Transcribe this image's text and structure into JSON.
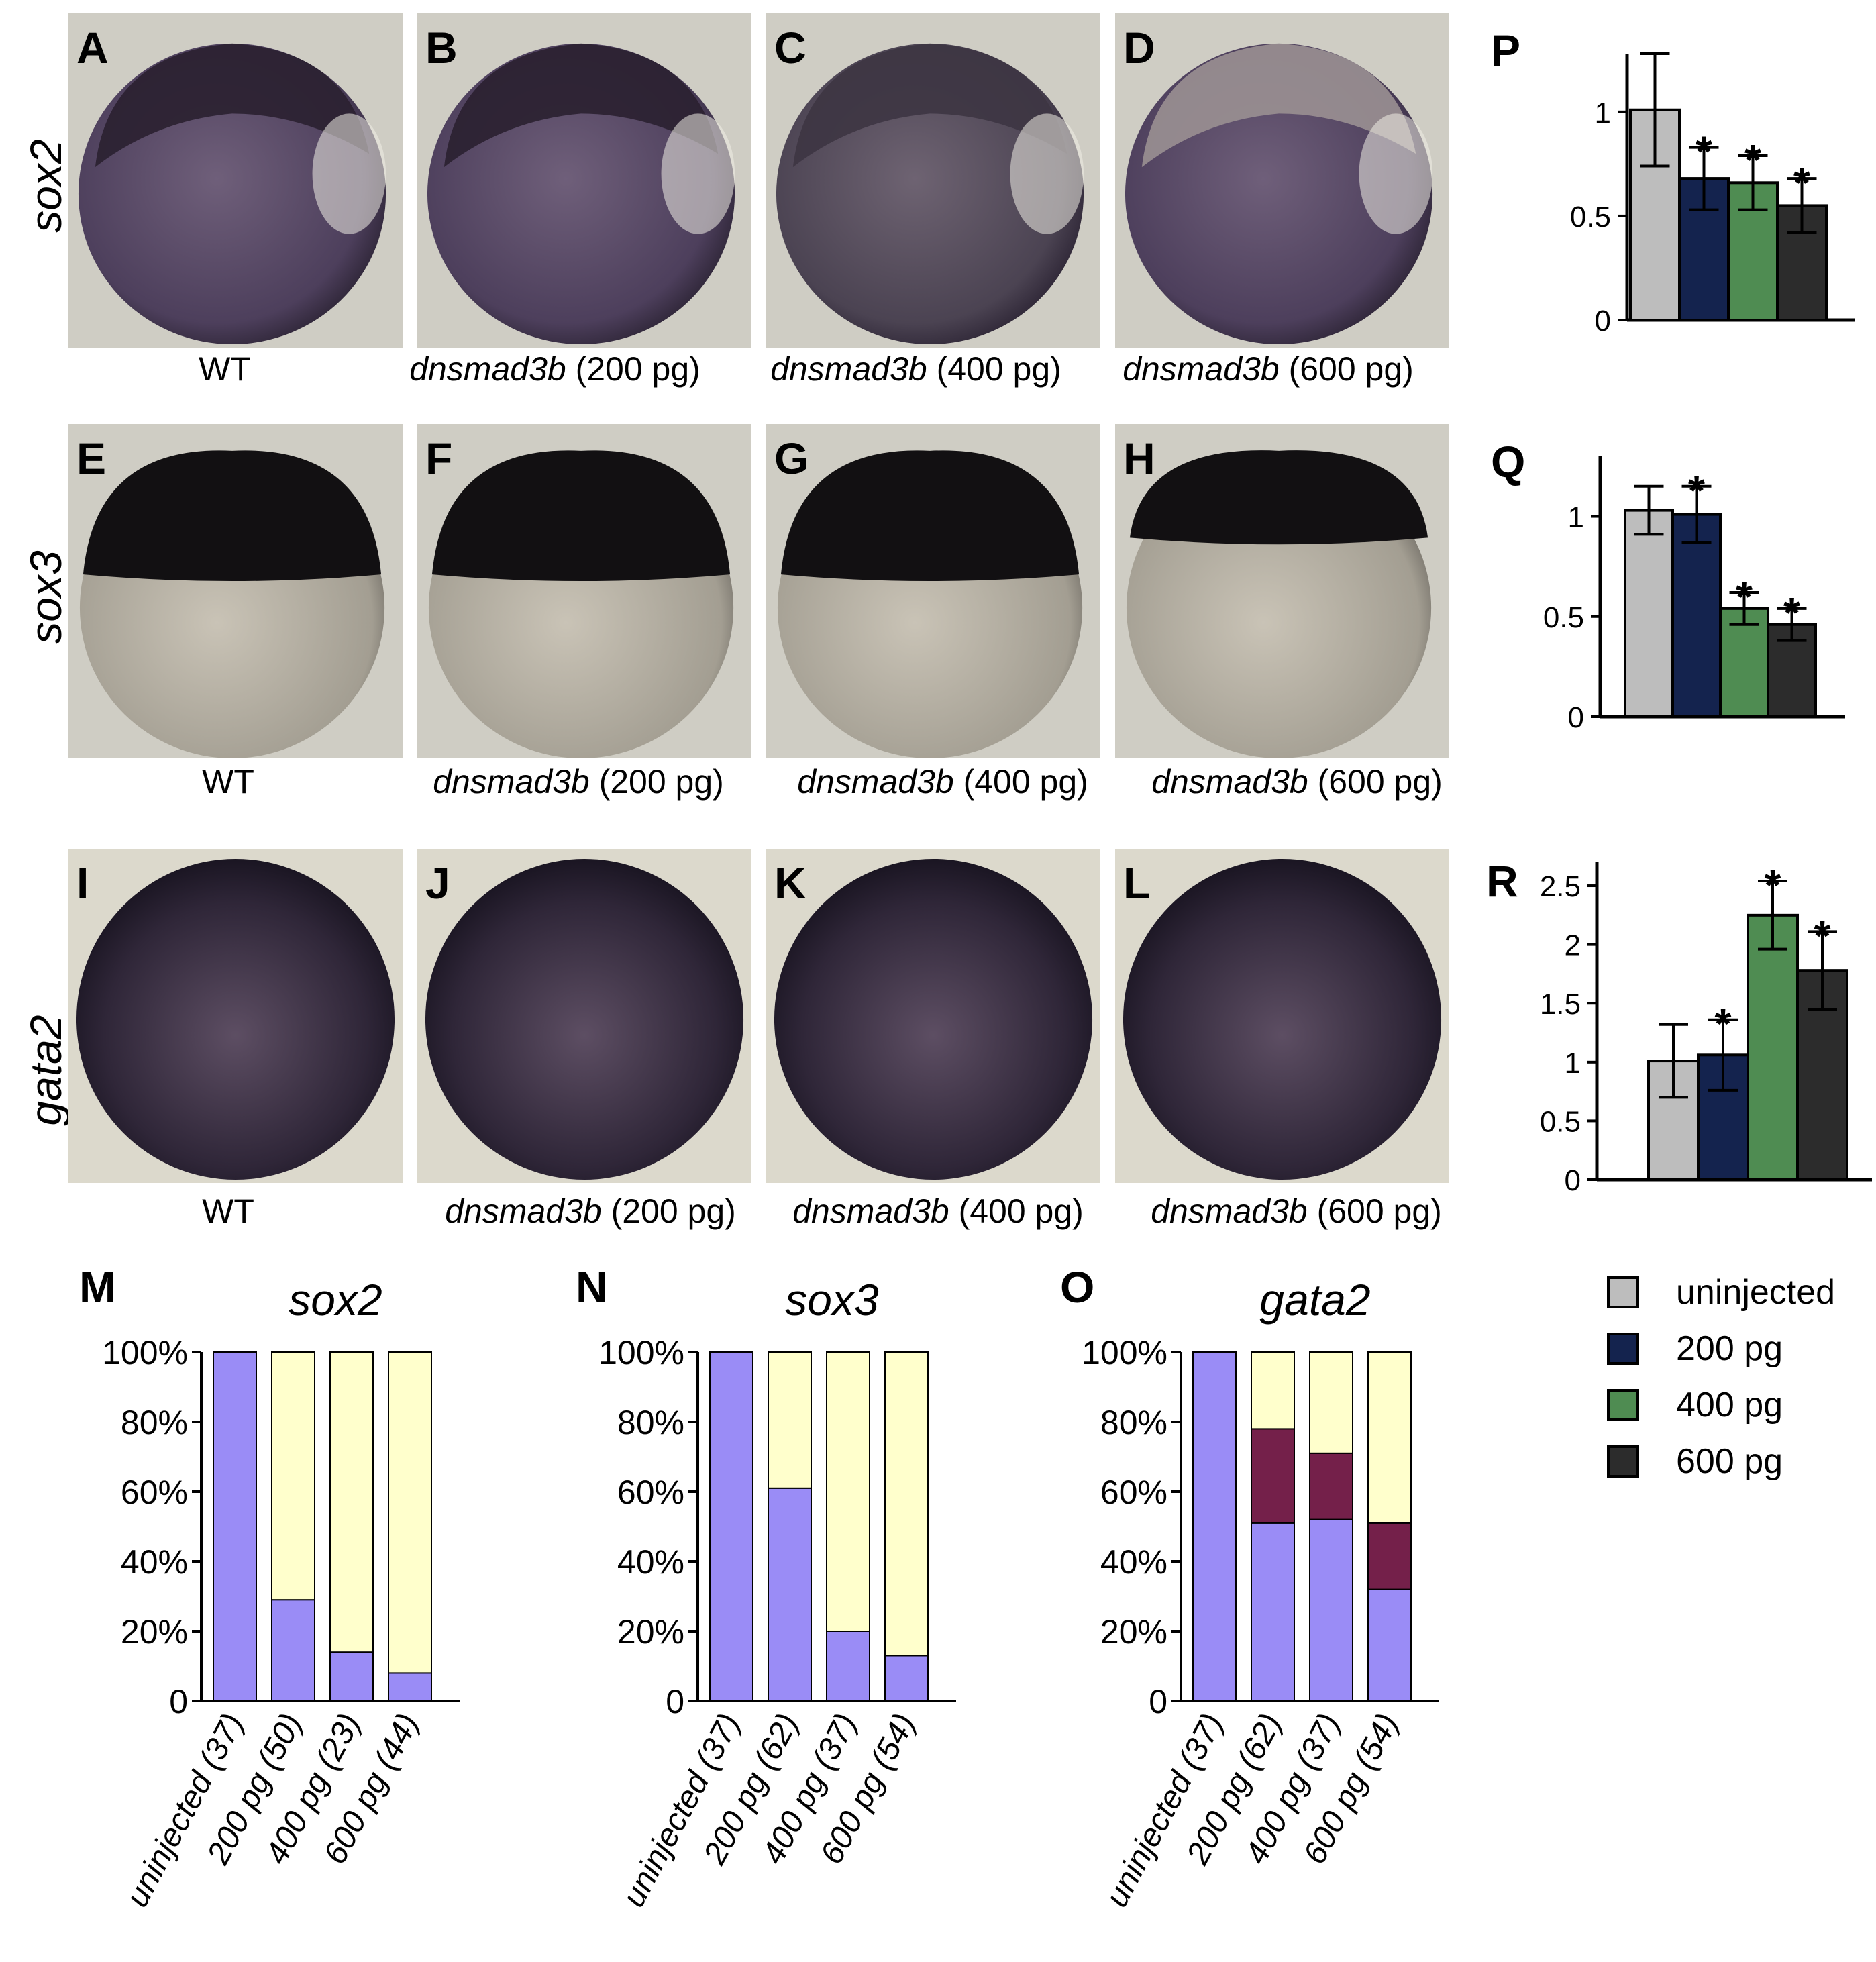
{
  "rows": [
    {
      "gene": "sox2",
      "panels": [
        {
          "label": "A",
          "caption_italic": "",
          "caption_rest": "WT"
        },
        {
          "label": "B",
          "caption_italic": "dnsmad3b",
          "caption_rest": " (200 pg)"
        },
        {
          "label": "C",
          "caption_italic": "dnsmad3b",
          "caption_rest": " (400 pg)"
        },
        {
          "label": "D",
          "caption_italic": "dnsmad3b",
          "caption_rest": " (600 pg)"
        }
      ]
    },
    {
      "gene": "sox3",
      "panels": [
        {
          "label": "E",
          "caption_italic": "",
          "caption_rest": "WT"
        },
        {
          "label": "F",
          "caption_italic": "dnsmad3b",
          "caption_rest": " (200 pg)"
        },
        {
          "label": "G",
          "caption_italic": "dnsmad3b",
          "caption_rest": " (400 pg)"
        },
        {
          "label": "H",
          "caption_italic": "dnsmad3b",
          "caption_rest": " (600 pg)"
        }
      ]
    },
    {
      "gene": "gata2",
      "panels": [
        {
          "label": "I",
          "caption_italic": "",
          "caption_rest": "WT"
        },
        {
          "label": "J",
          "caption_italic": "dnsmad3b",
          "caption_rest": " (200 pg)"
        },
        {
          "label": "K",
          "caption_italic": "dnsmad3b",
          "caption_rest": " (400 pg)"
        },
        {
          "label": "L",
          "caption_italic": "dnsmad3b",
          "caption_rest": " (600 pg)"
        }
      ]
    }
  ],
  "colors": {
    "uninjected": "#bdbdbd",
    "200pg": "#14234e",
    "400pg": "#4f8c52",
    "600pg": "#2c2c2c",
    "stack_normal": "#9a8cf6",
    "stack_reduced": "#ffffcc",
    "stack_middle": "#74204a"
  },
  "legend": {
    "items": [
      {
        "label": "uninjected",
        "color": "#bdbdbd"
      },
      {
        "label": "200 pg",
        "color": "#14234e"
      },
      {
        "label": "400 pg",
        "color": "#4f8c52"
      },
      {
        "label": "600 pg",
        "color": "#2c2c2c"
      }
    ]
  },
  "chart_data": [
    {
      "panel": "P",
      "type": "bar",
      "categories": [
        "uninjected",
        "200 pg",
        "400 pg",
        "600 pg"
      ],
      "values": [
        1.01,
        0.68,
        0.66,
        0.55
      ],
      "errors": [
        0.27,
        0.15,
        0.13,
        0.13
      ],
      "significant": [
        false,
        true,
        true,
        true
      ],
      "yticks": [
        "0",
        "0.5",
        "1"
      ],
      "ytick_values": [
        0,
        0.5,
        1
      ],
      "ylim": [
        0,
        1.28
      ]
    },
    {
      "panel": "Q",
      "type": "bar",
      "categories": [
        "uninjected",
        "200 pg",
        "400 pg",
        "600 pg"
      ],
      "values": [
        1.03,
        1.01,
        0.54,
        0.46
      ],
      "errors": [
        0.12,
        0.14,
        0.08,
        0.08
      ],
      "significant": [
        false,
        true,
        true,
        true
      ],
      "yticks": [
        "0",
        "0.5",
        "1"
      ],
      "ytick_values": [
        0,
        0.5,
        1
      ],
      "ylim": [
        0,
        1.3
      ]
    },
    {
      "panel": "R",
      "type": "bar",
      "categories": [
        "uninjected",
        "200 pg",
        "400 pg",
        "600 pg"
      ],
      "values": [
        1.01,
        1.06,
        2.25,
        1.78
      ],
      "errors": [
        0.31,
        0.3,
        0.29,
        0.33
      ],
      "significant": [
        false,
        true,
        true,
        true
      ],
      "yticks": [
        "0",
        "0.5",
        "1",
        "1.5",
        "2",
        "2.5"
      ],
      "ytick_values": [
        0,
        0.5,
        1,
        1.5,
        2,
        2.5
      ],
      "ylim": [
        0,
        2.7
      ]
    },
    {
      "panel": "M",
      "title": "sox2",
      "type": "bar",
      "stacked": true,
      "categories": [
        "uninjected (37)",
        "200 pg (50)",
        "400 pg (23)",
        "600 pg (44)"
      ],
      "series": [
        {
          "values": [
            100,
            29,
            14,
            8
          ]
        },
        {
          "values": [
            0,
            0,
            0,
            0
          ]
        },
        {
          "values": [
            0,
            71,
            86,
            92
          ]
        }
      ],
      "yticks": [
        "0",
        "20%",
        "40%",
        "60%",
        "80%",
        "100%"
      ],
      "ytick_values": [
        0,
        20,
        40,
        60,
        80,
        100
      ],
      "ylim": [
        0,
        100
      ]
    },
    {
      "panel": "N",
      "title": "sox3",
      "type": "bar",
      "stacked": true,
      "categories": [
        "uninjected (37)",
        "200 pg (62)",
        "400 pg (37)",
        "600 pg (54)"
      ],
      "series": [
        {
          "values": [
            100,
            61,
            20,
            13
          ]
        },
        {
          "values": [
            0,
            0,
            0,
            0
          ]
        },
        {
          "values": [
            0,
            39,
            80,
            87
          ]
        }
      ],
      "yticks": [
        "0",
        "20%",
        "40%",
        "60%",
        "80%",
        "100%"
      ],
      "ytick_values": [
        0,
        20,
        40,
        60,
        80,
        100
      ],
      "ylim": [
        0,
        100
      ]
    },
    {
      "panel": "O",
      "title": "gata2",
      "type": "bar",
      "stacked": true,
      "categories": [
        "uninjected (37)",
        "200 pg (62)",
        "400 pg (37)",
        "600 pg (54)"
      ],
      "series": [
        {
          "values": [
            100,
            51,
            52,
            32
          ]
        },
        {
          "values": [
            0,
            27,
            19,
            19
          ]
        },
        {
          "values": [
            0,
            22,
            29,
            49
          ]
        }
      ],
      "yticks": [
        "0",
        "20%",
        "40%",
        "60%",
        "80%",
        "100%"
      ],
      "ytick_values": [
        0,
        20,
        40,
        60,
        80,
        100
      ],
      "ylim": [
        0,
        100
      ]
    }
  ]
}
